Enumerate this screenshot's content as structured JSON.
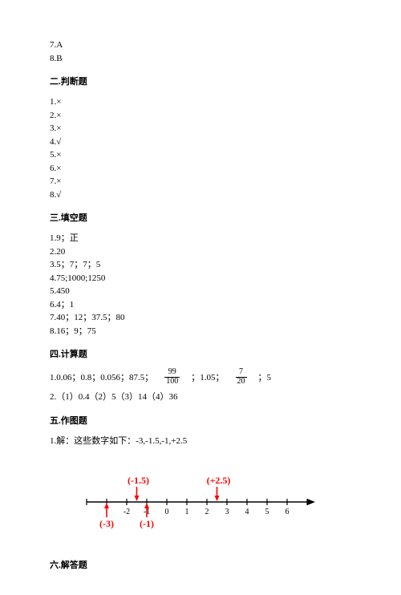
{
  "answers_top": [
    "7.A",
    "8.B"
  ],
  "section2": "二.判断题",
  "s2_items": [
    "1.×",
    "2.×",
    "3.×",
    "4.√",
    "5.×",
    "6.×",
    "7.×",
    "8.√"
  ],
  "section3": "三.填空题",
  "s3_items": [
    "1.9；正",
    "2.20",
    "3.5；7；7；5",
    "4.75;1000;1250",
    "5.450",
    "6.4；1",
    "7.40；12；37.5；80",
    "8.16；9；75"
  ],
  "section4": "四.计算题",
  "s4_line1": {
    "pre": "1.0.06；0.8；0.056；87.5；",
    "frac1_num": "99",
    "frac1_den": "100",
    "mid": "；1.05；",
    "frac2_num": "7",
    "frac2_den": "20",
    "post": "；5"
  },
  "s4_line2": "2.（1）0.4（2）5（3）14（4）36",
  "section5": "五.作图题",
  "s5_line1": "1.解：这些数字如下：-3,-1.5,-1,+2.5",
  "numberline": {
    "axis_color": "#000000",
    "mark_color": "#ff0000",
    "label_color": "#ff0000",
    "start": -4,
    "end": 7,
    "ticks_labeled_start": -2,
    "ticks_labeled_end": 6,
    "tick_spacing_px": 25,
    "upper_marks": [
      {
        "value": -1.5,
        "label": "(-1.5)"
      },
      {
        "value": 2.5,
        "label": "(+2.5)"
      }
    ],
    "lower_marks": [
      {
        "value": -3,
        "label": "(-3)"
      },
      {
        "value": -1,
        "label": "(-1)"
      }
    ],
    "fontsize_labels": 10,
    "fontsize_ticks": 10
  },
  "section6": "六.解答题"
}
